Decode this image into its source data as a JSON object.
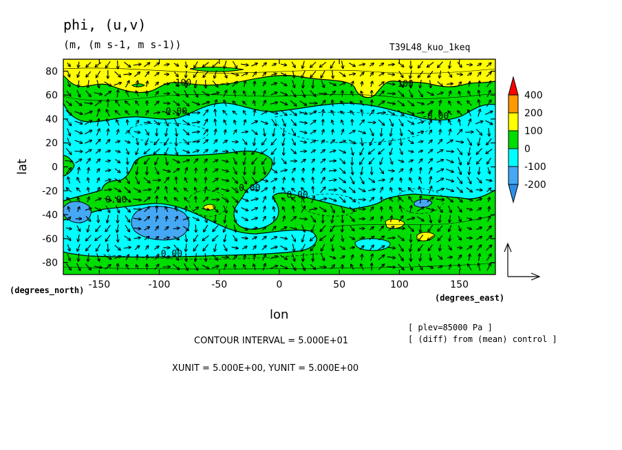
{
  "header": {
    "title": "phi, (u,v)",
    "units": "(m, (m s-1, m s-1))",
    "run": "T39L48_kuo_1keq"
  },
  "footer": {
    "contour_interval": "CONTOUR INTERVAL = 5.000E+01",
    "vector_units": "XUNIT = 5.000E+00, YUNIT = 5.000E+00",
    "plev": "[ plev=85000 Pa ]",
    "diff": "[ (diff) from (mean) control ]"
  },
  "chart_data": {
    "type": "heatmap",
    "xlabel": "lon",
    "ylabel": "lat",
    "x_units": "(degrees_east)",
    "y_units": "(degrees_north)",
    "xlim": [
      -180,
      180
    ],
    "ylim": [
      -90,
      90
    ],
    "x_ticks": [
      -150,
      -100,
      -50,
      0,
      50,
      100,
      150
    ],
    "y_ticks": [
      80,
      60,
      40,
      20,
      0,
      -20,
      -40,
      -60,
      -80
    ],
    "colorbar": {
      "labels": [
        "400",
        "200",
        "100",
        "0",
        "-100",
        "-200"
      ],
      "levels": [
        -300,
        -200,
        -100,
        0,
        100,
        200,
        400
      ],
      "colors": {
        "lt_m200": "#2f8fe8",
        "m200_m100": "#45a8f4",
        "m100_0": "#00ffff",
        "0_100": "#00dd00",
        "100_200": "#ffff00",
        "200_400": "#ff9900",
        "gt_400": "#ff0000"
      }
    },
    "contour_labels": [
      {
        "text": "100",
        "lon": -80,
        "lat": 68
      },
      {
        "text": "100",
        "lon": 105,
        "lat": 67
      },
      {
        "text": "-0.00",
        "lon": -88,
        "lat": 44
      },
      {
        "text": "-0.00",
        "lon": 130,
        "lat": 40
      },
      {
        "text": "-0.00",
        "lon": -27,
        "lat": -20
      },
      {
        "text": "0.00",
        "lon": -136,
        "lat": -30
      },
      {
        "text": "0.00",
        "lon": 15,
        "lat": -26
      },
      {
        "text": "-0.00",
        "lon": -92,
        "lat": -75
      }
    ]
  }
}
